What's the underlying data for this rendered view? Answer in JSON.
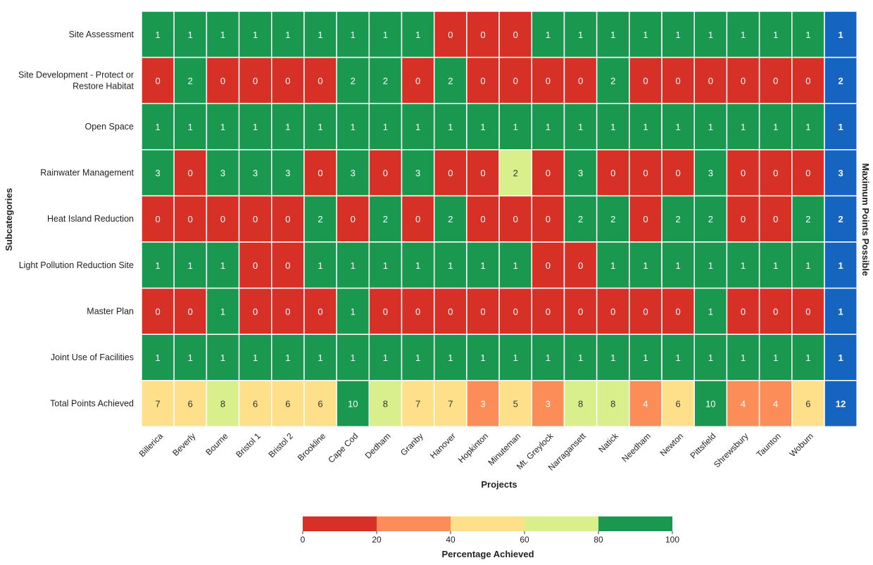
{
  "chart_data": {
    "type": "heatmap",
    "title": "",
    "xlabel": "Projects",
    "ylabel": "Subcategories",
    "right_label": "Maximum Points Possible",
    "projects": [
      "Billerica",
      "Beverly",
      "Bourne",
      "Bristol 1",
      "Bristol 2",
      "Brookline",
      "Cape Cod",
      "Dedham",
      "Granby",
      "Hanover",
      "Hopkinton",
      "Minuteman",
      "Mt. Greylock",
      "Narragansett",
      "Natick",
      "Needham",
      "Newton",
      "Pittsfield",
      "Shrewsbury",
      "Taunton",
      "Woburn"
    ],
    "subcategories": [
      "Site Assessment",
      "Site Development - Protect or Restore Habitat",
      "Open Space",
      "Rainwater Management",
      "Heat Island Reduction",
      "Light Pollution Reduction Site",
      "Master Plan",
      "Joint Use of Facilities",
      "Total Points Achieved"
    ],
    "values": [
      [
        1,
        1,
        1,
        1,
        1,
        1,
        1,
        1,
        1,
        0,
        0,
        0,
        1,
        1,
        1,
        1,
        1,
        1,
        1,
        1,
        1
      ],
      [
        0,
        2,
        0,
        0,
        0,
        0,
        2,
        2,
        0,
        2,
        0,
        0,
        0,
        0,
        2,
        0,
        0,
        0,
        0,
        0,
        0
      ],
      [
        1,
        1,
        1,
        1,
        1,
        1,
        1,
        1,
        1,
        1,
        1,
        1,
        1,
        1,
        1,
        1,
        1,
        1,
        1,
        1,
        1
      ],
      [
        3,
        0,
        3,
        3,
        3,
        0,
        3,
        0,
        3,
        0,
        0,
        2,
        0,
        3,
        0,
        0,
        0,
        3,
        0,
        0,
        0
      ],
      [
        0,
        0,
        0,
        0,
        0,
        2,
        0,
        2,
        0,
        2,
        0,
        0,
        0,
        2,
        2,
        0,
        2,
        2,
        0,
        0,
        2
      ],
      [
        1,
        1,
        1,
        0,
        0,
        1,
        1,
        1,
        1,
        1,
        1,
        1,
        0,
        0,
        1,
        1,
        1,
        1,
        1,
        1,
        1
      ],
      [
        0,
        0,
        1,
        0,
        0,
        0,
        1,
        0,
        0,
        0,
        0,
        0,
        0,
        0,
        0,
        0,
        0,
        1,
        0,
        0,
        0
      ],
      [
        1,
        1,
        1,
        1,
        1,
        1,
        1,
        1,
        1,
        1,
        1,
        1,
        1,
        1,
        1,
        1,
        1,
        1,
        1,
        1,
        1
      ],
      [
        7,
        6,
        8,
        6,
        6,
        6,
        10,
        8,
        7,
        7,
        3,
        5,
        3,
        8,
        8,
        4,
        6,
        10,
        4,
        4,
        6
      ]
    ],
    "max_points": [
      1,
      2,
      1,
      3,
      2,
      1,
      1,
      1,
      12
    ],
    "colorbar": {
      "label": "Percentage Achieved",
      "ticks": [
        0,
        20,
        40,
        60,
        80,
        100
      ],
      "bins": [
        {
          "from": 0,
          "to": 20,
          "color": "#d73027"
        },
        {
          "from": 20,
          "to": 40,
          "color": "#fc8d59"
        },
        {
          "from": 40,
          "to": 60,
          "color": "#fee08b"
        },
        {
          "from": 60,
          "to": 80,
          "color": "#d9ef8b"
        },
        {
          "from": 80,
          "to": 100,
          "color": "#1a9850"
        }
      ]
    },
    "max_column_color": "#1565c0"
  }
}
